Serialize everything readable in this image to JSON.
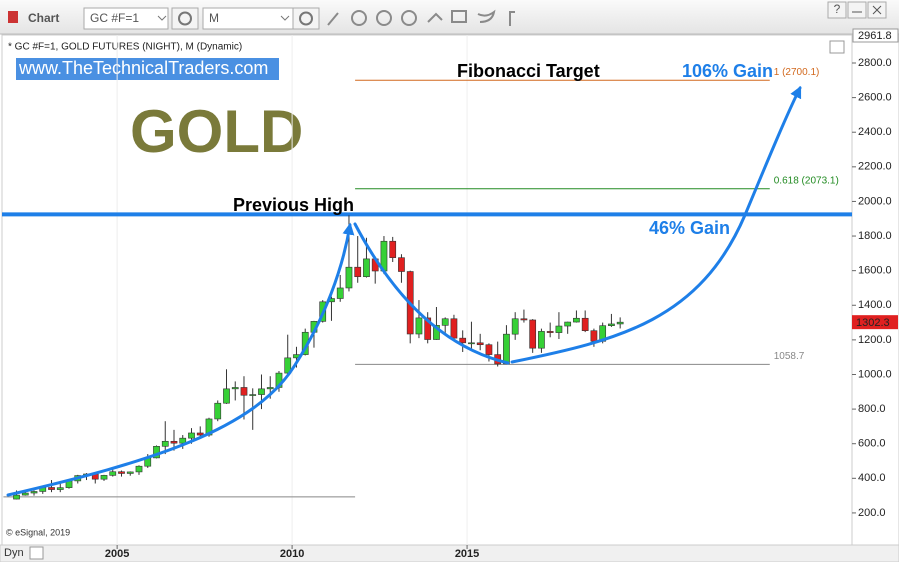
{
  "toolbar": {
    "title": "Chart",
    "symbol": "GC #F=1",
    "interval": "M",
    "help": "?",
    "mode": "Dyn"
  },
  "chart_data": {
    "type": "candlestick",
    "header": "* GC #F=1, GOLD FUTURES (NIGHT), M (Dynamic)",
    "website": "www.TheTechnicalTraders.com",
    "title": "GOLD",
    "credit": "© eSignal, 2019",
    "annotations": [
      "Previous High",
      "Fibonacci Target",
      "106% Gain",
      "46% Gain"
    ],
    "x": [
      2002.0,
      2002.25,
      2002.5,
      2002.75,
      2003.0,
      2003.25,
      2003.5,
      2003.75,
      2004.0,
      2004.25,
      2004.5,
      2004.75,
      2005.0,
      2005.25,
      2005.5,
      2005.75,
      2006.0,
      2006.25,
      2006.5,
      2006.75,
      2007.0,
      2007.25,
      2007.5,
      2007.75,
      2008.0,
      2008.25,
      2008.5,
      2008.75,
      2009.0,
      2009.25,
      2009.5,
      2009.75,
      2010.0,
      2010.25,
      2010.5,
      2010.75,
      2011.0,
      2011.25,
      2011.5,
      2011.75,
      2012.0,
      2012.25,
      2012.5,
      2012.75,
      2013.0,
      2013.25,
      2013.5,
      2013.75,
      2014.0,
      2014.25,
      2014.5,
      2014.75,
      2015.0,
      2015.25,
      2015.5,
      2015.75,
      2016.0,
      2016.25,
      2016.5,
      2016.75,
      2017.0,
      2017.25,
      2017.5,
      2017.75,
      2018.0,
      2018.25,
      2018.5,
      2018.75,
      2019.0,
      2019.25
    ],
    "open": [
      280,
      303,
      315,
      324,
      347,
      335,
      346,
      385,
      416,
      425,
      395,
      417,
      438,
      428,
      437,
      470,
      518,
      585,
      614,
      603,
      632,
      662,
      650,
      743,
      834,
      917,
      925,
      880,
      884,
      917,
      925,
      1008,
      1096,
      1115,
      1244,
      1307,
      1420,
      1439,
      1500,
      1620,
      1565,
      1668,
      1598,
      1770,
      1675,
      1595,
      1234,
      1327,
      1202,
      1284,
      1322,
      1210,
      1183,
      1183,
      1172,
      1115,
      1061,
      1233,
      1322,
      1315,
      1152,
      1249,
      1242,
      1280,
      1303,
      1325,
      1253,
      1192,
      1282,
      1292
    ],
    "high": [
      330,
      330,
      330,
      350,
      390,
      370,
      390,
      420,
      430,
      430,
      420,
      460,
      445,
      440,
      475,
      540,
      590,
      730,
      680,
      650,
      690,
      700,
      750,
      850,
      1030,
      960,
      990,
      920,
      1000,
      990,
      1020,
      1230,
      1160,
      1265,
      1310,
      1430,
      1450,
      1575,
      1920,
      1800,
      1790,
      1680,
      1800,
      1795,
      1695,
      1600,
      1430,
      1360,
      1390,
      1330,
      1345,
      1255,
      1305,
      1235,
      1180,
      1190,
      1285,
      1360,
      1375,
      1320,
      1265,
      1300,
      1360,
      1305,
      1370,
      1370,
      1265,
      1300,
      1350,
      1330
    ],
    "low": [
      278,
      300,
      300,
      310,
      320,
      320,
      340,
      370,
      390,
      370,
      385,
      410,
      410,
      415,
      420,
      460,
      515,
      540,
      560,
      570,
      600,
      640,
      640,
      730,
      830,
      850,
      740,
      680,
      800,
      860,
      900,
      1000,
      1040,
      1110,
      1155,
      1300,
      1310,
      1420,
      1480,
      1530,
      1560,
      1525,
      1580,
      1650,
      1530,
      1180,
      1210,
      1180,
      1200,
      1240,
      1200,
      1130,
      1140,
      1140,
      1075,
      1046,
      1060,
      1200,
      1300,
      1125,
      1125,
      1215,
      1205,
      1235,
      1300,
      1245,
      1160,
      1180,
      1275,
      1266
    ],
    "close": [
      303,
      315,
      324,
      347,
      335,
      346,
      385,
      416,
      425,
      395,
      417,
      438,
      428,
      437,
      470,
      518,
      585,
      614,
      603,
      632,
      662,
      650,
      743,
      834,
      917,
      925,
      880,
      884,
      917,
      925,
      1008,
      1096,
      1115,
      1244,
      1307,
      1420,
      1439,
      1500,
      1620,
      1565,
      1668,
      1598,
      1770,
      1675,
      1595,
      1234,
      1327,
      1202,
      1284,
      1322,
      1210,
      1183,
      1183,
      1172,
      1115,
      1061,
      1233,
      1322,
      1315,
      1152,
      1249,
      1242,
      1280,
      1303,
      1325,
      1253,
      1192,
      1282,
      1292,
      1302.3
    ],
    "up_color": "#36d036",
    "down_color": "#e02020",
    "xlim": [
      2001.71,
      2026.0
    ],
    "xticks": [
      2005,
      2010,
      2015
    ],
    "ylim": [
      -2.7,
      2961.8
    ],
    "yticks": [
      {
        "value": 200,
        "label": "200.0"
      },
      {
        "value": 400,
        "label": "400.0"
      },
      {
        "value": 600,
        "label": "600.0"
      },
      {
        "value": 800,
        "label": "800.0"
      },
      {
        "value": 1000,
        "label": "1000.0"
      },
      {
        "value": 1200,
        "label": "1200.0"
      },
      {
        "value": 1400,
        "label": "1400.0"
      },
      {
        "value": 1600,
        "label": "1600.0"
      },
      {
        "value": 1800,
        "label": "1800.0"
      },
      {
        "value": 2000,
        "label": "2000.0"
      },
      {
        "value": 2200,
        "label": "2200.0"
      },
      {
        "value": 2400,
        "label": "2400.0"
      },
      {
        "value": 2600,
        "label": "2600.0"
      },
      {
        "value": 2800,
        "label": "2800.0"
      }
    ],
    "grid": true,
    "levels": [
      {
        "value": 2700.1,
        "label": "1 (2700.1)",
        "color": "#d2691e",
        "x": [
          2011.8,
          2023.65
        ]
      },
      {
        "value": 2073.1,
        "label": "0.618 (2073.1)",
        "color": "#228b22",
        "x": [
          2011.8,
          2023.65
        ]
      },
      {
        "value": 1058.7,
        "label": "1058.7",
        "color": "#888888",
        "x": [
          2011.8,
          2023.65
        ]
      },
      {
        "value": 1925,
        "color": "#1e7fe8",
        "x": [
          2001.71,
          2026.0
        ]
      },
      {
        "value": 293,
        "color": "#888888",
        "x": [
          2001.75,
          2011.8
        ]
      }
    ]
  }
}
